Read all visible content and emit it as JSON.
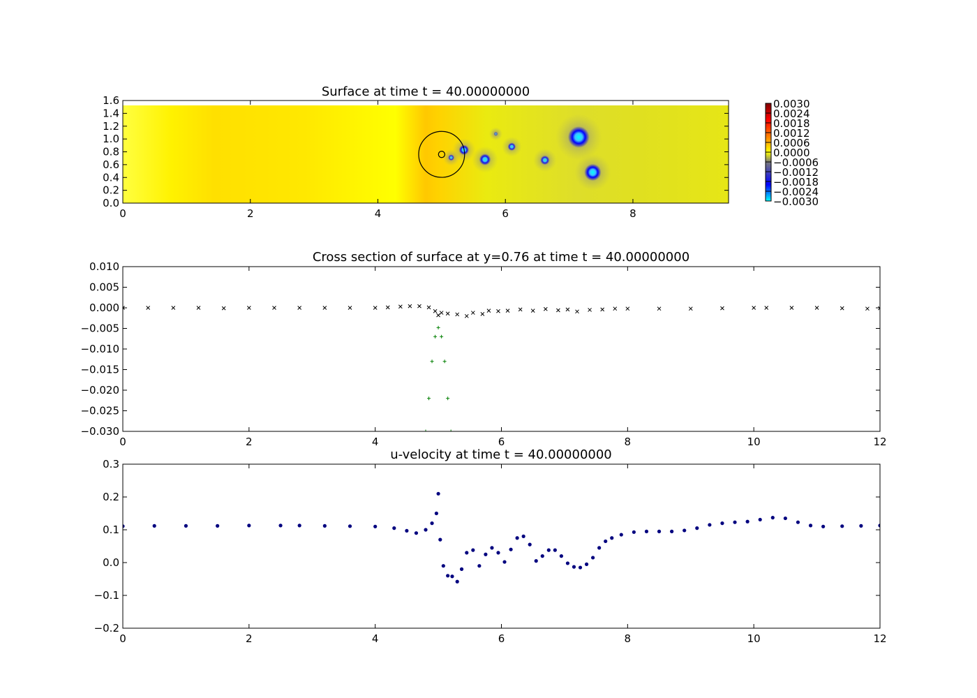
{
  "chart_data": [
    {
      "type": "heatmap",
      "title": "Surface at time t =    40.00000000",
      "xlim": [
        0,
        9.5
      ],
      "ylim": [
        0,
        1.6
      ],
      "xticks": [
        "0",
        "2",
        "4",
        "6",
        "8"
      ],
      "yticks": [
        "0.0",
        "0.2",
        "0.4",
        "0.6",
        "0.8",
        "1.0",
        "1.2",
        "1.4",
        "1.6"
      ],
      "colorbar": {
        "range": [
          -0.003,
          0.003
        ],
        "ticks": [
          "0.0030",
          "0.0024",
          "0.0018",
          "0.0012",
          "0.0006",
          "0.0000",
          "−0.0006",
          "−0.0012",
          "−0.0018",
          "−0.0024",
          "−0.0030"
        ]
      },
      "colors": {
        "high": "#7f0000",
        "mid": "#ffff00",
        "low": "#00ffff",
        "blue": "#0000ff"
      },
      "features": {
        "circles": [
          {
            "x": 5.0,
            "y": 0.76,
            "r": 0.36
          },
          {
            "x": 5.0,
            "y": 0.76,
            "r": 0.05
          }
        ],
        "vortices": [
          {
            "x": 5.35,
            "y": 0.83,
            "r": 0.07,
            "v": -0.0026
          },
          {
            "x": 5.15,
            "y": 0.71,
            "r": 0.05,
            "v": -0.0018
          },
          {
            "x": 5.68,
            "y": 0.68,
            "r": 0.08,
            "v": -0.0026
          },
          {
            "x": 6.1,
            "y": 0.88,
            "r": 0.06,
            "v": -0.0022
          },
          {
            "x": 6.62,
            "y": 0.67,
            "r": 0.07,
            "v": -0.0022
          },
          {
            "x": 7.15,
            "y": 1.03,
            "r": 0.14,
            "v": -0.003
          },
          {
            "x": 7.37,
            "y": 0.48,
            "r": 0.11,
            "v": -0.003
          },
          {
            "x": 5.85,
            "y": 1.08,
            "r": 0.04,
            "v": -0.0008
          }
        ]
      }
    },
    {
      "type": "scatter",
      "title": "Cross section of surface at y=0.76 at time t =    40.00000000",
      "xlim": [
        0,
        12
      ],
      "ylim": [
        -0.03,
        0.01
      ],
      "xticks": [
        "0",
        "2",
        "4",
        "6",
        "8",
        "10",
        "12"
      ],
      "yticks": [
        "0.010",
        "0.005",
        "0.000",
        "−0.005",
        "−0.010",
        "−0.015",
        "−0.020",
        "−0.025",
        "−0.030"
      ],
      "series": [
        {
          "marker": "x",
          "color": "#000000",
          "x": [
            0,
            0.4,
            0.8,
            1.2,
            1.6,
            2.0,
            2.4,
            2.8,
            3.2,
            3.6,
            4.0,
            4.2,
            4.4,
            4.55,
            4.7,
            4.85,
            4.95,
            5.0,
            5.05,
            5.15,
            5.3,
            5.45,
            5.55,
            5.7,
            5.8,
            5.95,
            6.1,
            6.3,
            6.5,
            6.7,
            6.9,
            7.05,
            7.2,
            7.4,
            7.6,
            7.8,
            8.0,
            8.5,
            9.0,
            9.5,
            10.0,
            10.2,
            10.6,
            11.0,
            11.4,
            11.8,
            12.0
          ],
          "y": [
            0.0,
            0.0,
            0.0,
            0.0,
            -0.0001,
            0.0,
            0.0,
            0.0,
            0.0,
            0.0,
            0.0,
            0.0001,
            0.0003,
            0.0004,
            0.0004,
            0.0001,
            -0.0008,
            -0.0018,
            -0.0012,
            -0.0014,
            -0.0016,
            -0.002,
            -0.0012,
            -0.0015,
            -0.0007,
            -0.0008,
            -0.0007,
            -0.0004,
            -0.0007,
            -0.0003,
            -0.0006,
            -0.0004,
            -0.0009,
            -0.0005,
            -0.0004,
            -0.0002,
            -0.0002,
            -0.0002,
            -0.0002,
            -0.0001,
            0.0,
            0.0,
            0.0,
            0.0,
            -0.0001,
            -0.0002,
            -0.0001
          ]
        },
        {
          "marker": "+",
          "color": "#007f00",
          "x": [
            4.8,
            4.85,
            4.9,
            4.95,
            5.0,
            5.05,
            5.1,
            5.15,
            5.2
          ],
          "y": [
            -0.03,
            -0.022,
            -0.013,
            -0.007,
            -0.0048,
            -0.007,
            -0.013,
            -0.022,
            -0.03
          ]
        }
      ]
    },
    {
      "type": "scatter",
      "title": "u-velocity at time t =    40.00000000",
      "xlim": [
        0,
        12
      ],
      "ylim": [
        -0.2,
        0.3
      ],
      "xticks": [
        "0",
        "2",
        "4",
        "6",
        "8",
        "10",
        "12"
      ],
      "yticks": [
        "0.3",
        "0.2",
        "0.1",
        "0.0",
        "−0.1",
        "−0.2"
      ],
      "series": [
        {
          "marker": "o",
          "color": "#00007f",
          "x": [
            0,
            0.5,
            1.0,
            1.5,
            2.0,
            2.5,
            2.8,
            3.2,
            3.6,
            4.0,
            4.3,
            4.5,
            4.65,
            4.8,
            4.9,
            4.97,
            5.0,
            5.03,
            5.08,
            5.15,
            5.22,
            5.3,
            5.37,
            5.45,
            5.55,
            5.65,
            5.75,
            5.85,
            5.95,
            6.05,
            6.15,
            6.25,
            6.35,
            6.45,
            6.55,
            6.65,
            6.75,
            6.85,
            6.95,
            7.05,
            7.15,
            7.25,
            7.35,
            7.45,
            7.55,
            7.65,
            7.75,
            7.9,
            8.1,
            8.3,
            8.5,
            8.7,
            8.9,
            9.1,
            9.3,
            9.5,
            9.7,
            9.9,
            10.1,
            10.3,
            10.5,
            10.7,
            10.9,
            11.1,
            11.4,
            11.7,
            12.0
          ],
          "y": [
            0.111,
            0.112,
            0.112,
            0.112,
            0.113,
            0.113,
            0.113,
            0.112,
            0.111,
            0.11,
            0.105,
            0.097,
            0.09,
            0.1,
            0.12,
            0.15,
            0.21,
            0.07,
            -0.01,
            -0.04,
            -0.042,
            -0.058,
            -0.02,
            0.03,
            0.038,
            -0.01,
            0.025,
            0.045,
            0.03,
            0.002,
            0.04,
            0.075,
            0.08,
            0.055,
            0.005,
            0.02,
            0.038,
            0.038,
            0.02,
            -0.002,
            -0.013,
            -0.015,
            -0.005,
            0.015,
            0.045,
            0.065,
            0.075,
            0.085,
            0.093,
            0.095,
            0.095,
            0.095,
            0.098,
            0.105,
            0.115,
            0.12,
            0.123,
            0.125,
            0.131,
            0.137,
            0.135,
            0.123,
            0.113,
            0.11,
            0.111,
            0.112,
            0.113
          ]
        }
      ]
    }
  ]
}
